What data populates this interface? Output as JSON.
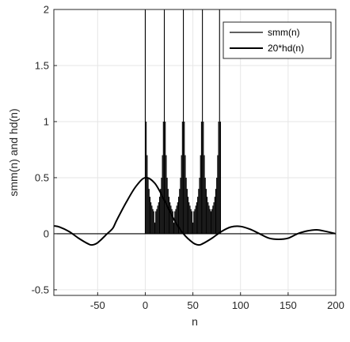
{
  "chart_data": {
    "type": "line",
    "xlabel": "n",
    "ylabel": "smm(n) and hd(n)",
    "xlim": [
      -96,
      200
    ],
    "ylim": [
      -0.55,
      2
    ],
    "xticks": [
      -50,
      0,
      50,
      100,
      150,
      200
    ],
    "xtick_labels": [
      "-50",
      "0",
      "50",
      "100",
      "150",
      "200"
    ],
    "yticks": [
      -0.5,
      0,
      0.5,
      1,
      1.5,
      2
    ],
    "ytick_labels": [
      "-0.5",
      "0",
      "0.5",
      "1",
      "1.5",
      "2"
    ],
    "grid": true,
    "legend_position": "top-right",
    "series": [
      {
        "name": "smm(n)",
        "style": "thin",
        "color": "#000000",
        "baseline": 0,
        "support": [
          0,
          79
        ],
        "pulse_period": 20,
        "pulse_peaks": [
          0,
          20,
          40,
          60,
          78
        ],
        "peak_value": 2,
        "step_levels": [
          2,
          1,
          0.7,
          0.5,
          0.4,
          0.33,
          0.28,
          0.25,
          0.22,
          0.2
        ]
      },
      {
        "name": "20*hd(n)",
        "style": "thick",
        "color": "#000000",
        "x": [
          -96,
          -90,
          -80,
          -70,
          -60,
          -56,
          -50,
          -40,
          -34,
          -30,
          -20,
          -10,
          0,
          10,
          20,
          30,
          40,
          50,
          56,
          60,
          70,
          80,
          90,
          100,
          110,
          120,
          130,
          140,
          150,
          160,
          170,
          180,
          190,
          200
        ],
        "y": [
          0.07,
          0.06,
          0.02,
          -0.04,
          -0.09,
          -0.1,
          -0.08,
          0.0,
          0.05,
          0.12,
          0.28,
          0.42,
          0.5,
          0.45,
          0.3,
          0.13,
          0.0,
          -0.08,
          -0.1,
          -0.09,
          -0.04,
          0.02,
          0.06,
          0.065,
          0.04,
          0.0,
          -0.04,
          -0.05,
          -0.04,
          0.0,
          0.025,
          0.035,
          0.02,
          0.0
        ]
      }
    ]
  }
}
